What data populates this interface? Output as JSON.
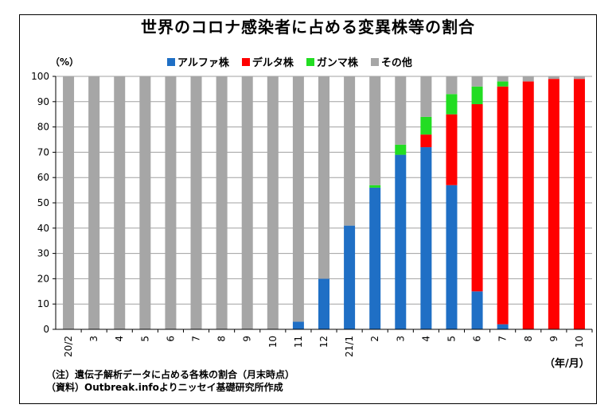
{
  "chart_data": {
    "type": "bar",
    "stacked": true,
    "title": "世界のコロナ感染者に占める変異株等の割合",
    "y_unit": "（%）",
    "x_unit": "（年/月）",
    "ylim": [
      0,
      100
    ],
    "yticks": [
      0,
      10,
      20,
      30,
      40,
      50,
      60,
      70,
      80,
      90,
      100
    ],
    "grid": true,
    "legend_position": "top",
    "categories": [
      "20/2",
      "3",
      "4",
      "5",
      "6",
      "7",
      "8",
      "9",
      "10",
      "11",
      "12",
      "21/1",
      "2",
      "3",
      "4",
      "5",
      "6",
      "7",
      "8",
      "9",
      "10"
    ],
    "series": [
      {
        "name": "アルファ株",
        "color": "#1f6fc5",
        "values": [
          0,
          0,
          0,
          0,
          0,
          0,
          0,
          0,
          0,
          3,
          20,
          41,
          56,
          69,
          72,
          57,
          15,
          2,
          0,
          0,
          0
        ]
      },
      {
        "name": "デルタ株",
        "color": "#ff0000",
        "values": [
          0,
          0,
          0,
          0,
          0,
          0,
          0,
          0,
          0,
          0,
          0,
          0,
          0,
          0,
          5,
          28,
          74,
          94,
          98,
          99,
          99
        ]
      },
      {
        "name": "ガンマ株",
        "color": "#22dd22",
        "values": [
          0,
          0,
          0,
          0,
          0,
          0,
          0,
          0,
          0,
          0,
          0,
          0,
          1,
          4,
          7,
          8,
          7,
          2,
          0,
          0,
          0
        ]
      },
      {
        "name": "その他",
        "color": "#a6a6a6",
        "values": [
          100,
          100,
          100,
          100,
          100,
          100,
          100,
          100,
          100,
          97,
          80,
          59,
          43,
          27,
          16,
          7,
          4,
          2,
          2,
          1,
          1
        ]
      }
    ]
  },
  "notes": [
    "（注）遺伝子解析データに占める各株の割合（月末時点）",
    "（資料）Outbreak.infoよりニッセイ基礎研究所作成"
  ]
}
